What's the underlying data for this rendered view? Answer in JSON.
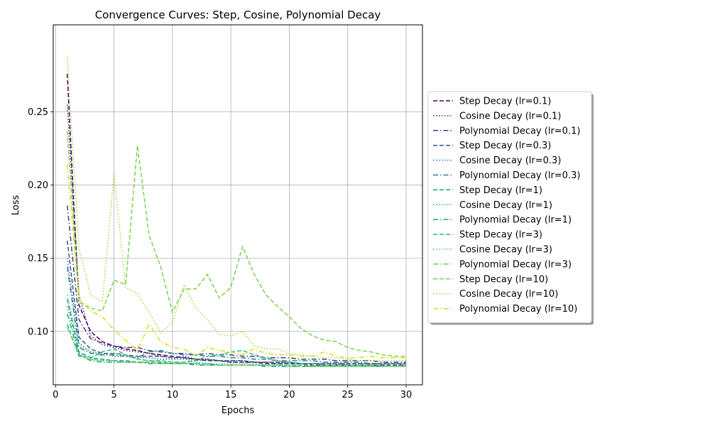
{
  "chart_data": {
    "type": "line",
    "title": "Convergence Curves: Step, Cosine, Polynomial Decay",
    "xlabel": "Epochs",
    "ylabel": "Loss",
    "xlim": [
      -0.2,
      31.4
    ],
    "ylim": [
      0.0635,
      0.3095
    ],
    "xticks": [
      0,
      5,
      10,
      15,
      20,
      25,
      30
    ],
    "yticks": [
      0.1,
      0.15,
      0.2,
      0.25
    ],
    "xtick_labels": [
      "0",
      "5",
      "10",
      "15",
      "20",
      "25",
      "30"
    ],
    "ytick_labels": [
      "0.10",
      "0.15",
      "0.20",
      "0.25"
    ],
    "grid": true,
    "legend_position": "right",
    "x": [
      1,
      2,
      3,
      4,
      5,
      6,
      7,
      8,
      9,
      10,
      11,
      12,
      13,
      14,
      15,
      16,
      17,
      18,
      19,
      20,
      21,
      22,
      23,
      24,
      25,
      26,
      27,
      28,
      29,
      30
    ],
    "series": [
      {
        "name": "Step Decay (lr=0.1)",
        "color": "#440154",
        "dash": "dashed",
        "values": [
          0.276,
          0.118,
          0.1,
          0.093,
          0.09,
          0.088,
          0.087,
          0.085,
          0.084,
          0.083,
          0.082,
          0.081,
          0.08,
          0.08,
          0.079,
          0.079,
          0.079,
          0.078,
          0.078,
          0.078,
          0.078,
          0.077,
          0.077,
          0.077,
          0.077,
          0.077,
          0.077,
          0.077,
          0.077,
          0.077
        ]
      },
      {
        "name": "Cosine Decay (lr=0.1)",
        "color": "#482173",
        "dash": "dotted",
        "values": [
          0.255,
          0.125,
          0.097,
          0.091,
          0.089,
          0.087,
          0.086,
          0.085,
          0.083,
          0.082,
          0.083,
          0.081,
          0.081,
          0.08,
          0.08,
          0.08,
          0.079,
          0.079,
          0.079,
          0.079,
          0.078,
          0.078,
          0.078,
          0.078,
          0.078,
          0.078,
          0.078,
          0.078,
          0.078,
          0.078
        ]
      },
      {
        "name": "Polynomial Decay (lr=0.1)",
        "color": "#433e85",
        "dash": "dashdot",
        "values": [
          0.186,
          0.108,
          0.095,
          0.092,
          0.09,
          0.089,
          0.089,
          0.087,
          0.086,
          0.085,
          0.085,
          0.084,
          0.085,
          0.084,
          0.084,
          0.083,
          0.083,
          0.082,
          0.082,
          0.082,
          0.081,
          0.081,
          0.081,
          0.08,
          0.08,
          0.08,
          0.08,
          0.079,
          0.079,
          0.079
        ]
      },
      {
        "name": "Step Decay (lr=0.3)",
        "color": "#38588c",
        "dash": "dashed",
        "values": [
          0.162,
          0.096,
          0.088,
          0.085,
          0.085,
          0.084,
          0.083,
          0.083,
          0.083,
          0.082,
          0.082,
          0.081,
          0.081,
          0.08,
          0.08,
          0.08,
          0.079,
          0.079,
          0.079,
          0.079,
          0.078,
          0.078,
          0.078,
          0.078,
          0.078,
          0.078,
          0.078,
          0.078,
          0.078,
          0.078
        ]
      },
      {
        "name": "Cosine Decay (lr=0.3)",
        "color": "#2d708e",
        "dash": "dotted",
        "values": [
          0.15,
          0.092,
          0.086,
          0.085,
          0.083,
          0.083,
          0.082,
          0.082,
          0.081,
          0.081,
          0.081,
          0.08,
          0.08,
          0.08,
          0.079,
          0.079,
          0.079,
          0.079,
          0.078,
          0.078,
          0.078,
          0.078,
          0.078,
          0.078,
          0.077,
          0.077,
          0.077,
          0.077,
          0.077,
          0.077
        ]
      },
      {
        "name": "Polynomial Decay (lr=0.3)",
        "color": "#25858e",
        "dash": "dashdot",
        "values": [
          0.144,
          0.089,
          0.085,
          0.084,
          0.084,
          0.083,
          0.082,
          0.086,
          0.087,
          0.085,
          0.084,
          0.084,
          0.083,
          0.083,
          0.082,
          0.082,
          0.081,
          0.081,
          0.08,
          0.08,
          0.08,
          0.08,
          0.079,
          0.079,
          0.079,
          0.079,
          0.078,
          0.078,
          0.078,
          0.078
        ]
      },
      {
        "name": "Step Decay (lr=1)",
        "color": "#1e9b8a",
        "dash": "dashed",
        "values": [
          0.122,
          0.086,
          0.082,
          0.081,
          0.08,
          0.08,
          0.079,
          0.079,
          0.079,
          0.078,
          0.078,
          0.078,
          0.078,
          0.077,
          0.077,
          0.077,
          0.077,
          0.077,
          0.077,
          0.077,
          0.077,
          0.076,
          0.076,
          0.076,
          0.076,
          0.076,
          0.076,
          0.076,
          0.076,
          0.076
        ]
      },
      {
        "name": "Cosine Decay (lr=1)",
        "color": "#2ab07f",
        "dash": "dotted",
        "values": [
          0.117,
          0.085,
          0.081,
          0.08,
          0.08,
          0.079,
          0.079,
          0.079,
          0.078,
          0.078,
          0.078,
          0.078,
          0.077,
          0.077,
          0.077,
          0.077,
          0.077,
          0.077,
          0.077,
          0.076,
          0.076,
          0.076,
          0.076,
          0.076,
          0.076,
          0.076,
          0.076,
          0.076,
          0.076,
          0.076
        ]
      },
      {
        "name": "Polynomial Decay (lr=1)",
        "color": "#20a386",
        "dash": "dashdot",
        "values": [
          0.112,
          0.084,
          0.08,
          0.079,
          0.079,
          0.079,
          0.079,
          0.078,
          0.078,
          0.078,
          0.078,
          0.077,
          0.077,
          0.077,
          0.077,
          0.077,
          0.077,
          0.076,
          0.076,
          0.076,
          0.076,
          0.076,
          0.076,
          0.076,
          0.076,
          0.076,
          0.076,
          0.076,
          0.076,
          0.076
        ]
      },
      {
        "name": "Step Decay (lr=3)",
        "color": "#35b779",
        "dash": "dashed",
        "values": [
          0.105,
          0.083,
          0.082,
          0.086,
          0.088,
          0.084,
          0.081,
          0.08,
          0.08,
          0.079,
          0.079,
          0.08,
          0.083,
          0.084,
          0.086,
          0.087,
          0.084,
          0.082,
          0.08,
          0.079,
          0.078,
          0.078,
          0.077,
          0.077,
          0.077,
          0.077,
          0.077,
          0.076,
          0.076,
          0.076
        ]
      },
      {
        "name": "Cosine Decay (lr=3)",
        "color": "#52c569",
        "dash": "dotted",
        "values": [
          0.125,
          0.09,
          0.086,
          0.083,
          0.085,
          0.084,
          0.081,
          0.08,
          0.08,
          0.079,
          0.079,
          0.079,
          0.078,
          0.078,
          0.078,
          0.078,
          0.078,
          0.077,
          0.077,
          0.077,
          0.077,
          0.077,
          0.076,
          0.076,
          0.076,
          0.076,
          0.076,
          0.076,
          0.076,
          0.076
        ]
      },
      {
        "name": "Polynomial Decay (lr=3)",
        "color": "#6ccd5a",
        "dash": "dashdot",
        "values": [
          0.103,
          0.084,
          0.081,
          0.08,
          0.08,
          0.079,
          0.079,
          0.079,
          0.078,
          0.078,
          0.078,
          0.078,
          0.078,
          0.077,
          0.077,
          0.077,
          0.077,
          0.077,
          0.077,
          0.077,
          0.076,
          0.076,
          0.076,
          0.076,
          0.076,
          0.076,
          0.076,
          0.076,
          0.076,
          0.076
        ]
      },
      {
        "name": "Step Decay (lr=10)",
        "color": "#7ad151",
        "dash": "dashed",
        "values": [
          0.237,
          0.12,
          0.116,
          0.114,
          0.135,
          0.132,
          0.227,
          0.166,
          0.144,
          0.113,
          0.129,
          0.129,
          0.139,
          0.123,
          0.13,
          0.158,
          0.139,
          0.125,
          0.117,
          0.11,
          0.102,
          0.097,
          0.094,
          0.093,
          0.089,
          0.087,
          0.086,
          0.084,
          0.083,
          0.083
        ]
      },
      {
        "name": "Cosine Decay (lr=10)",
        "color": "#a0da39",
        "dash": "dotted",
        "values": [
          0.288,
          0.157,
          0.125,
          0.12,
          0.208,
          0.13,
          0.126,
          0.113,
          0.099,
          0.106,
          0.132,
          0.116,
          0.108,
          0.098,
          0.097,
          0.1,
          0.09,
          0.088,
          0.088,
          0.085,
          0.084,
          0.083,
          0.082,
          0.082,
          0.081,
          0.08,
          0.08,
          0.08,
          0.08,
          0.08
        ]
      },
      {
        "name": "Polynomial Decay (lr=10)",
        "color": "#d0e11c",
        "dash": "dashdot",
        "values": [
          0.214,
          0.122,
          0.114,
          0.11,
          0.101,
          0.094,
          0.087,
          0.105,
          0.093,
          0.089,
          0.088,
          0.083,
          0.089,
          0.087,
          0.086,
          0.084,
          0.088,
          0.085,
          0.084,
          0.084,
          0.083,
          0.083,
          0.086,
          0.083,
          0.082,
          0.082,
          0.083,
          0.082,
          0.082,
          0.082
        ]
      }
    ]
  }
}
